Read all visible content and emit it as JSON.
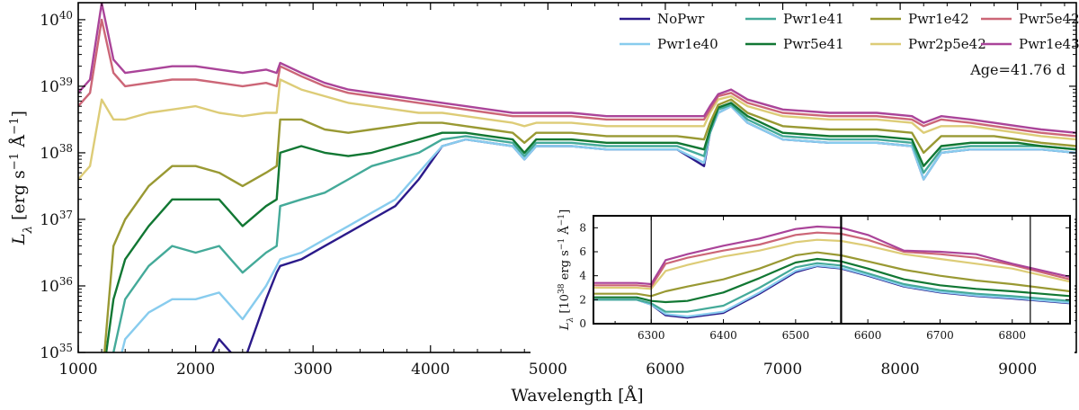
{
  "chart_data": {
    "type": "line",
    "title": "",
    "xlabel": "Wavelength [Å]",
    "ylabel": "L_λ [erg s⁻¹ Å⁻¹]",
    "ylabel_parts": {
      "base": "L",
      "sub": "λ",
      "units": "[erg s",
      "exp1": "−1",
      "mid": " Å",
      "exp2": "−1",
      "end": "]"
    },
    "yscale": "log",
    "xlim": [
      1000,
      9500
    ],
    "ylim": [
      1e+35,
      1.8e+40
    ],
    "x_ticks": [
      1000,
      2000,
      3000,
      4000,
      5000,
      6000,
      7000,
      8000,
      9000
    ],
    "x_tick_labels": [
      "1000",
      "2000",
      "3000",
      "4000",
      "5000",
      "6000",
      "7000",
      "8000",
      "9000"
    ],
    "y_ticks": [
      35,
      36,
      37,
      38,
      39,
      40
    ],
    "y_tick_labels": [
      {
        "base": "10",
        "exp": "35"
      },
      {
        "base": "10",
        "exp": "36"
      },
      {
        "base": "10",
        "exp": "37"
      },
      {
        "base": "10",
        "exp": "38"
      },
      {
        "base": "10",
        "exp": "39"
      },
      {
        "base": "10",
        "exp": "40"
      }
    ],
    "annotation": "Age=41.76 d",
    "legend_location": "top-right",
    "x": [
      1000,
      1100,
      1200,
      1300,
      1400,
      1600,
      1800,
      2000,
      2200,
      2400,
      2600,
      2690,
      2720,
      2900,
      3100,
      3300,
      3500,
      3700,
      3900,
      4100,
      4300,
      4500,
      4700,
      4800,
      4900,
      5200,
      5500,
      5800,
      6100,
      6330,
      6380,
      6450,
      6560,
      6700,
      7000,
      7400,
      7800,
      8100,
      8200,
      8350,
      8600,
      8800,
      9000,
      9200,
      9500
    ],
    "series": [
      {
        "name": "NoPwr",
        "color": "#2b1a8a",
        "log_values": [
          34.5,
          34.5,
          34.5,
          34.5,
          34.5,
          34.5,
          34.5,
          34.5,
          35.2,
          34.8,
          35.8,
          36.2,
          36.3,
          36.4,
          36.6,
          36.8,
          37.0,
          37.2,
          37.6,
          38.1,
          38.2,
          38.15,
          38.1,
          37.9,
          38.1,
          38.1,
          38.05,
          38.05,
          38.05,
          37.8,
          38.3,
          38.6,
          38.7,
          38.45,
          38.2,
          38.15,
          38.15,
          38.1,
          37.6,
          38.0,
          38.05,
          38.05,
          38.05,
          38.05,
          38.0
        ]
      },
      {
        "name": "Pwr1e40",
        "color": "#88ccee",
        "log_values": [
          34.5,
          34.5,
          34.5,
          34.5,
          35.2,
          35.6,
          35.8,
          35.8,
          35.9,
          35.5,
          36.0,
          36.3,
          36.4,
          36.5,
          36.7,
          36.9,
          37.1,
          37.3,
          37.7,
          38.1,
          38.2,
          38.15,
          38.1,
          37.9,
          38.1,
          38.1,
          38.05,
          38.05,
          38.05,
          37.85,
          38.3,
          38.6,
          38.7,
          38.45,
          38.2,
          38.15,
          38.15,
          38.1,
          37.6,
          38.0,
          38.05,
          38.05,
          38.05,
          38.05,
          38.0
        ]
      },
      {
        "name": "Pwr1e41",
        "color": "#44aa99",
        "log_values": [
          34.5,
          34.5,
          34.5,
          35.0,
          35.8,
          36.3,
          36.6,
          36.5,
          36.6,
          36.2,
          36.5,
          36.6,
          37.2,
          37.3,
          37.4,
          37.6,
          37.8,
          37.9,
          38.0,
          38.2,
          38.25,
          38.2,
          38.15,
          37.95,
          38.15,
          38.15,
          38.1,
          38.1,
          38.1,
          37.95,
          38.3,
          38.65,
          38.72,
          38.5,
          38.25,
          38.2,
          38.2,
          38.15,
          37.7,
          38.05,
          38.1,
          38.1,
          38.1,
          38.1,
          38.05
        ]
      },
      {
        "name": "Pwr5e41",
        "color": "#117733",
        "log_values": [
          34.5,
          34.5,
          34.5,
          35.8,
          36.4,
          36.9,
          37.3,
          37.3,
          37.3,
          36.9,
          37.2,
          37.3,
          38.0,
          38.1,
          38.0,
          37.95,
          38.0,
          38.1,
          38.2,
          38.3,
          38.3,
          38.25,
          38.2,
          38.0,
          38.2,
          38.2,
          38.15,
          38.15,
          38.15,
          38.05,
          38.35,
          38.68,
          38.75,
          38.55,
          38.3,
          38.25,
          38.25,
          38.2,
          37.8,
          38.1,
          38.15,
          38.15,
          38.15,
          38.1,
          38.05
        ]
      },
      {
        "name": "Pwr1e42",
        "color": "#999933",
        "log_values": [
          34.5,
          34.5,
          34.5,
          36.6,
          37.0,
          37.5,
          37.8,
          37.8,
          37.7,
          37.5,
          37.7,
          37.8,
          38.5,
          38.5,
          38.35,
          38.3,
          38.35,
          38.4,
          38.45,
          38.45,
          38.4,
          38.35,
          38.3,
          38.15,
          38.3,
          38.3,
          38.25,
          38.25,
          38.25,
          38.2,
          38.45,
          38.72,
          38.8,
          38.6,
          38.4,
          38.35,
          38.35,
          38.3,
          38.0,
          38.25,
          38.25,
          38.25,
          38.2,
          38.15,
          38.1
        ]
      },
      {
        "name": "Pwr2p5e42",
        "color": "#ddcc77",
        "log_values": [
          37.6,
          37.8,
          38.8,
          38.5,
          38.5,
          38.6,
          38.65,
          38.7,
          38.6,
          38.55,
          38.6,
          38.6,
          39.1,
          38.95,
          38.85,
          38.75,
          38.7,
          38.65,
          38.6,
          38.6,
          38.55,
          38.5,
          38.45,
          38.4,
          38.45,
          38.45,
          38.4,
          38.4,
          38.4,
          38.4,
          38.6,
          38.8,
          38.85,
          38.7,
          38.55,
          38.5,
          38.5,
          38.45,
          38.3,
          38.4,
          38.4,
          38.35,
          38.3,
          38.25,
          38.2
        ]
      },
      {
        "name": "Pwr5e42",
        "color": "#cc6677",
        "log_values": [
          38.7,
          38.9,
          40.0,
          39.2,
          39.0,
          39.05,
          39.1,
          39.1,
          39.05,
          39.0,
          39.05,
          39.0,
          39.3,
          39.15,
          39.0,
          38.9,
          38.85,
          38.8,
          38.75,
          38.7,
          38.65,
          38.6,
          38.55,
          38.55,
          38.55,
          38.55,
          38.5,
          38.5,
          38.5,
          38.5,
          38.65,
          38.85,
          38.9,
          38.75,
          38.6,
          38.55,
          38.55,
          38.5,
          38.4,
          38.5,
          38.45,
          38.4,
          38.35,
          38.3,
          38.25
        ]
      },
      {
        "name": "Pwr1e43",
        "color": "#aa4499",
        "log_values": [
          38.9,
          39.1,
          40.25,
          39.4,
          39.2,
          39.25,
          39.3,
          39.3,
          39.25,
          39.2,
          39.25,
          39.2,
          39.35,
          39.2,
          39.05,
          38.95,
          38.9,
          38.85,
          38.8,
          38.75,
          38.7,
          38.65,
          38.6,
          38.6,
          38.6,
          38.6,
          38.55,
          38.55,
          38.55,
          38.55,
          38.7,
          38.88,
          38.95,
          38.8,
          38.65,
          38.6,
          38.6,
          38.55,
          38.45,
          38.55,
          38.5,
          38.45,
          38.4,
          38.35,
          38.3
        ]
      }
    ],
    "inset": {
      "type": "line",
      "xlabel": "",
      "ylabel_parts": {
        "base": "L",
        "sub": "λ",
        "units": "[10",
        "exp1": "38",
        "mid": " erg s",
        "exp2": "−1",
        "mid2": " Å",
        "exp3": "−1",
        "end": "]"
      },
      "xlim": [
        6220,
        6880
      ],
      "ylim": [
        0,
        9
      ],
      "x_ticks": [
        6300,
        6400,
        6500,
        6600,
        6700,
        6800
      ],
      "x_tick_labels": [
        "6300",
        "6400",
        "6500",
        "6600",
        "6700",
        "6800"
      ],
      "y_ticks": [
        0,
        2,
        4,
        6,
        8
      ],
      "y_tick_labels": [
        "0",
        "2",
        "4",
        "6",
        "8"
      ],
      "vlines": [
        6300,
        6563,
        6825
      ],
      "x": [
        6220,
        6280,
        6300,
        6320,
        6350,
        6400,
        6450,
        6500,
        6530,
        6563,
        6600,
        6650,
        6700,
        6750,
        6800,
        6880
      ],
      "series": [
        {
          "name": "NoPwr",
          "values": [
            2.0,
            2.0,
            1.6,
            0.7,
            0.5,
            0.9,
            2.5,
            4.3,
            4.8,
            4.6,
            4.0,
            3.1,
            2.6,
            2.3,
            2.1,
            1.7
          ]
        },
        {
          "name": "Pwr1e40",
          "values": [
            2.0,
            2.0,
            1.6,
            0.8,
            0.6,
            1.0,
            2.6,
            4.4,
            4.85,
            4.65,
            4.05,
            3.15,
            2.65,
            2.35,
            2.15,
            1.75
          ]
        },
        {
          "name": "Pwr1e41",
          "values": [
            2.0,
            2.0,
            1.7,
            1.0,
            1.0,
            1.5,
            3.0,
            4.7,
            5.05,
            4.85,
            4.2,
            3.3,
            2.8,
            2.5,
            2.3,
            1.9
          ]
        },
        {
          "name": "Pwr5e41",
          "values": [
            2.2,
            2.2,
            1.9,
            1.8,
            1.9,
            2.6,
            3.8,
            5.1,
            5.4,
            5.2,
            4.6,
            3.7,
            3.2,
            2.9,
            2.7,
            2.3
          ]
        },
        {
          "name": "Pwr1e42",
          "values": [
            2.5,
            2.5,
            2.3,
            2.7,
            3.1,
            3.7,
            4.6,
            5.7,
            5.95,
            5.7,
            5.2,
            4.5,
            4.0,
            3.6,
            3.3,
            2.7
          ]
        },
        {
          "name": "Pwr2p5e42",
          "values": [
            3.0,
            3.0,
            2.9,
            4.4,
            4.9,
            5.6,
            6.1,
            6.8,
            7.0,
            6.9,
            6.5,
            5.8,
            5.4,
            5.0,
            4.6,
            3.5
          ]
        },
        {
          "name": "Pwr5e42",
          "values": [
            3.2,
            3.2,
            3.1,
            5.0,
            5.5,
            6.1,
            6.6,
            7.4,
            7.6,
            7.5,
            7.0,
            6.0,
            5.8,
            5.5,
            4.9,
            3.7
          ]
        },
        {
          "name": "Pwr1e43",
          "values": [
            3.4,
            3.4,
            3.3,
            5.3,
            5.8,
            6.5,
            7.1,
            7.9,
            8.1,
            8.0,
            7.4,
            6.1,
            6.0,
            5.8,
            5.0,
            3.9
          ]
        }
      ]
    }
  }
}
